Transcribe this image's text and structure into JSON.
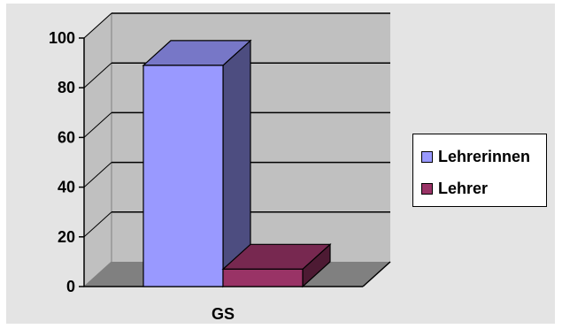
{
  "chart_data": {
    "type": "bar",
    "categories": [
      "GS"
    ],
    "series": [
      {
        "name": "Lehrerinnen",
        "values": [
          89
        ],
        "color": "#9999ff"
      },
      {
        "name": "Lehrer",
        "values": [
          7
        ],
        "color": "#993366"
      }
    ],
    "ylim": [
      0,
      100
    ],
    "yticks": [
      "0",
      "20",
      "40",
      "60",
      "80",
      "100"
    ],
    "grid": true,
    "legend_position": "right",
    "style": "3d"
  }
}
